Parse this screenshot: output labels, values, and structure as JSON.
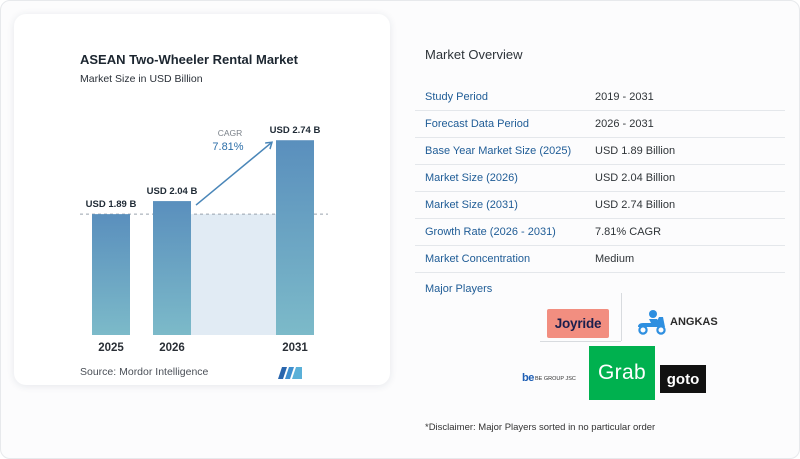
{
  "chart_data": {
    "type": "bar",
    "title": "ASEAN Two-Wheeler Rental Market",
    "subtitle": "Market Size in USD Billion",
    "categories": [
      "2025",
      "2026",
      "2031"
    ],
    "values": [
      1.89,
      2.04,
      2.74
    ],
    "value_labels": [
      "USD 1.89 B",
      "USD 2.04 B",
      "USD 2.74 B"
    ],
    "ylim": [
      0.5,
      2.8
    ],
    "grid": false,
    "annotation": {
      "label": "CAGR",
      "value": "7.81%"
    },
    "colors": {
      "bar_top": "#5a8fbd",
      "bar_bottom": "#7cbac9",
      "forecast_band": "#e1ebf4",
      "arrow": "#4a86b8",
      "reference_line": "#9aa3ad"
    }
  },
  "source": "Source: Mordor Intelligence",
  "overview": {
    "title": "Market Overview",
    "rows": [
      {
        "label": "Study Period",
        "value": "2019 - 2031"
      },
      {
        "label": "Forecast Data Period",
        "value": "2026 - 2031"
      },
      {
        "label": "Base Year Market Size (2025)",
        "value": "USD 1.89 Billion"
      },
      {
        "label": "Market Size (2026)",
        "value": "USD 2.04 Billion"
      },
      {
        "label": "Market Size (2031)",
        "value": "USD 2.74 Billion"
      },
      {
        "label": "Growth Rate (2026 - 2031)",
        "value": "7.81% CAGR"
      },
      {
        "label": "Market Concentration",
        "value": "Medium"
      }
    ],
    "major_players_label": "Major Players"
  },
  "players": {
    "joyride": {
      "name": "Joyride",
      "color": "#f28e80"
    },
    "angkas": {
      "name": "ANGKAS",
      "color": "#2e8fe0"
    },
    "grab": {
      "name": "Grab",
      "color": "#00b14f"
    },
    "be_group": {
      "mark": "be",
      "name": "BE GROUP JSC",
      "color": "#1f5fb4"
    },
    "goto": {
      "name": "goto",
      "color": "#111111"
    }
  },
  "disclaimer": "*Disclaimer: Major Players sorted in no particular order"
}
